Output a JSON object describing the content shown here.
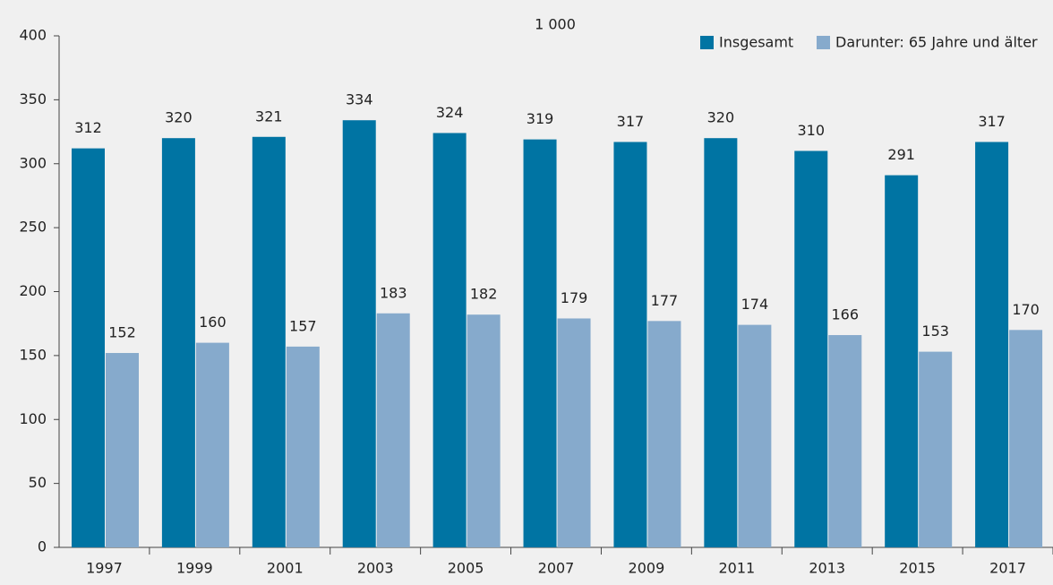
{
  "chart_data": {
    "type": "bar",
    "unit_label": "1 000",
    "categories": [
      "1997",
      "1999",
      "2001",
      "2003",
      "2005",
      "2007",
      "2009",
      "2011",
      "2013",
      "2015",
      "2017"
    ],
    "series": [
      {
        "name": "Insgesamt",
        "color": "#0074a3",
        "values": [
          312,
          320,
          321,
          334,
          324,
          319,
          317,
          320,
          310,
          291,
          317
        ]
      },
      {
        "name": "Darunter: 65 Jahre und älter",
        "color": "#86aacc",
        "values": [
          152,
          160,
          157,
          183,
          182,
          179,
          177,
          174,
          166,
          153,
          170
        ]
      }
    ],
    "ylim": [
      0,
      400
    ],
    "yticks": [
      0,
      50,
      100,
      150,
      200,
      250,
      300,
      350,
      400
    ],
    "grid": false,
    "legend": "top-right"
  }
}
